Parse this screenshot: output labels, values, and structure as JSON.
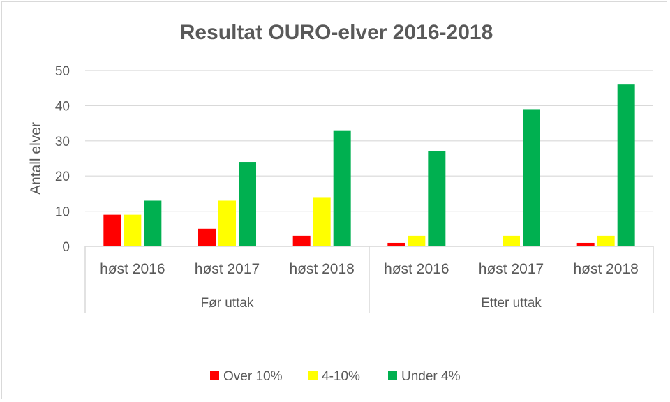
{
  "chart_data": {
    "type": "bar",
    "title": "Resultat OURO-elver 2016-2018",
    "ylabel": "Antall elver",
    "xlabel": "",
    "ylim": [
      0,
      50
    ],
    "yticks": [
      0,
      10,
      20,
      30,
      40,
      50
    ],
    "grid": true,
    "legend_position": "bottom",
    "groups": [
      {
        "label": "Før uttak",
        "categories": [
          "høst 2016",
          "høst 2017",
          "høst 2018"
        ]
      },
      {
        "label": "Etter uttak",
        "categories": [
          "høst 2016",
          "høst 2017",
          "høst 2018"
        ]
      }
    ],
    "categories": [
      "høst 2016",
      "høst 2017",
      "høst 2018",
      "høst 2016",
      "høst 2017",
      "høst 2018"
    ],
    "series": [
      {
        "name": "Over 10%",
        "color": "#ff0000",
        "values": [
          9,
          5,
          3,
          1,
          0,
          1
        ]
      },
      {
        "name": "4-10%",
        "color": "#ffff00",
        "values": [
          9,
          13,
          14,
          3,
          3,
          3
        ]
      },
      {
        "name": "Under 4%",
        "color": "#00b050",
        "values": [
          13,
          24,
          33,
          27,
          39,
          46
        ]
      }
    ]
  }
}
